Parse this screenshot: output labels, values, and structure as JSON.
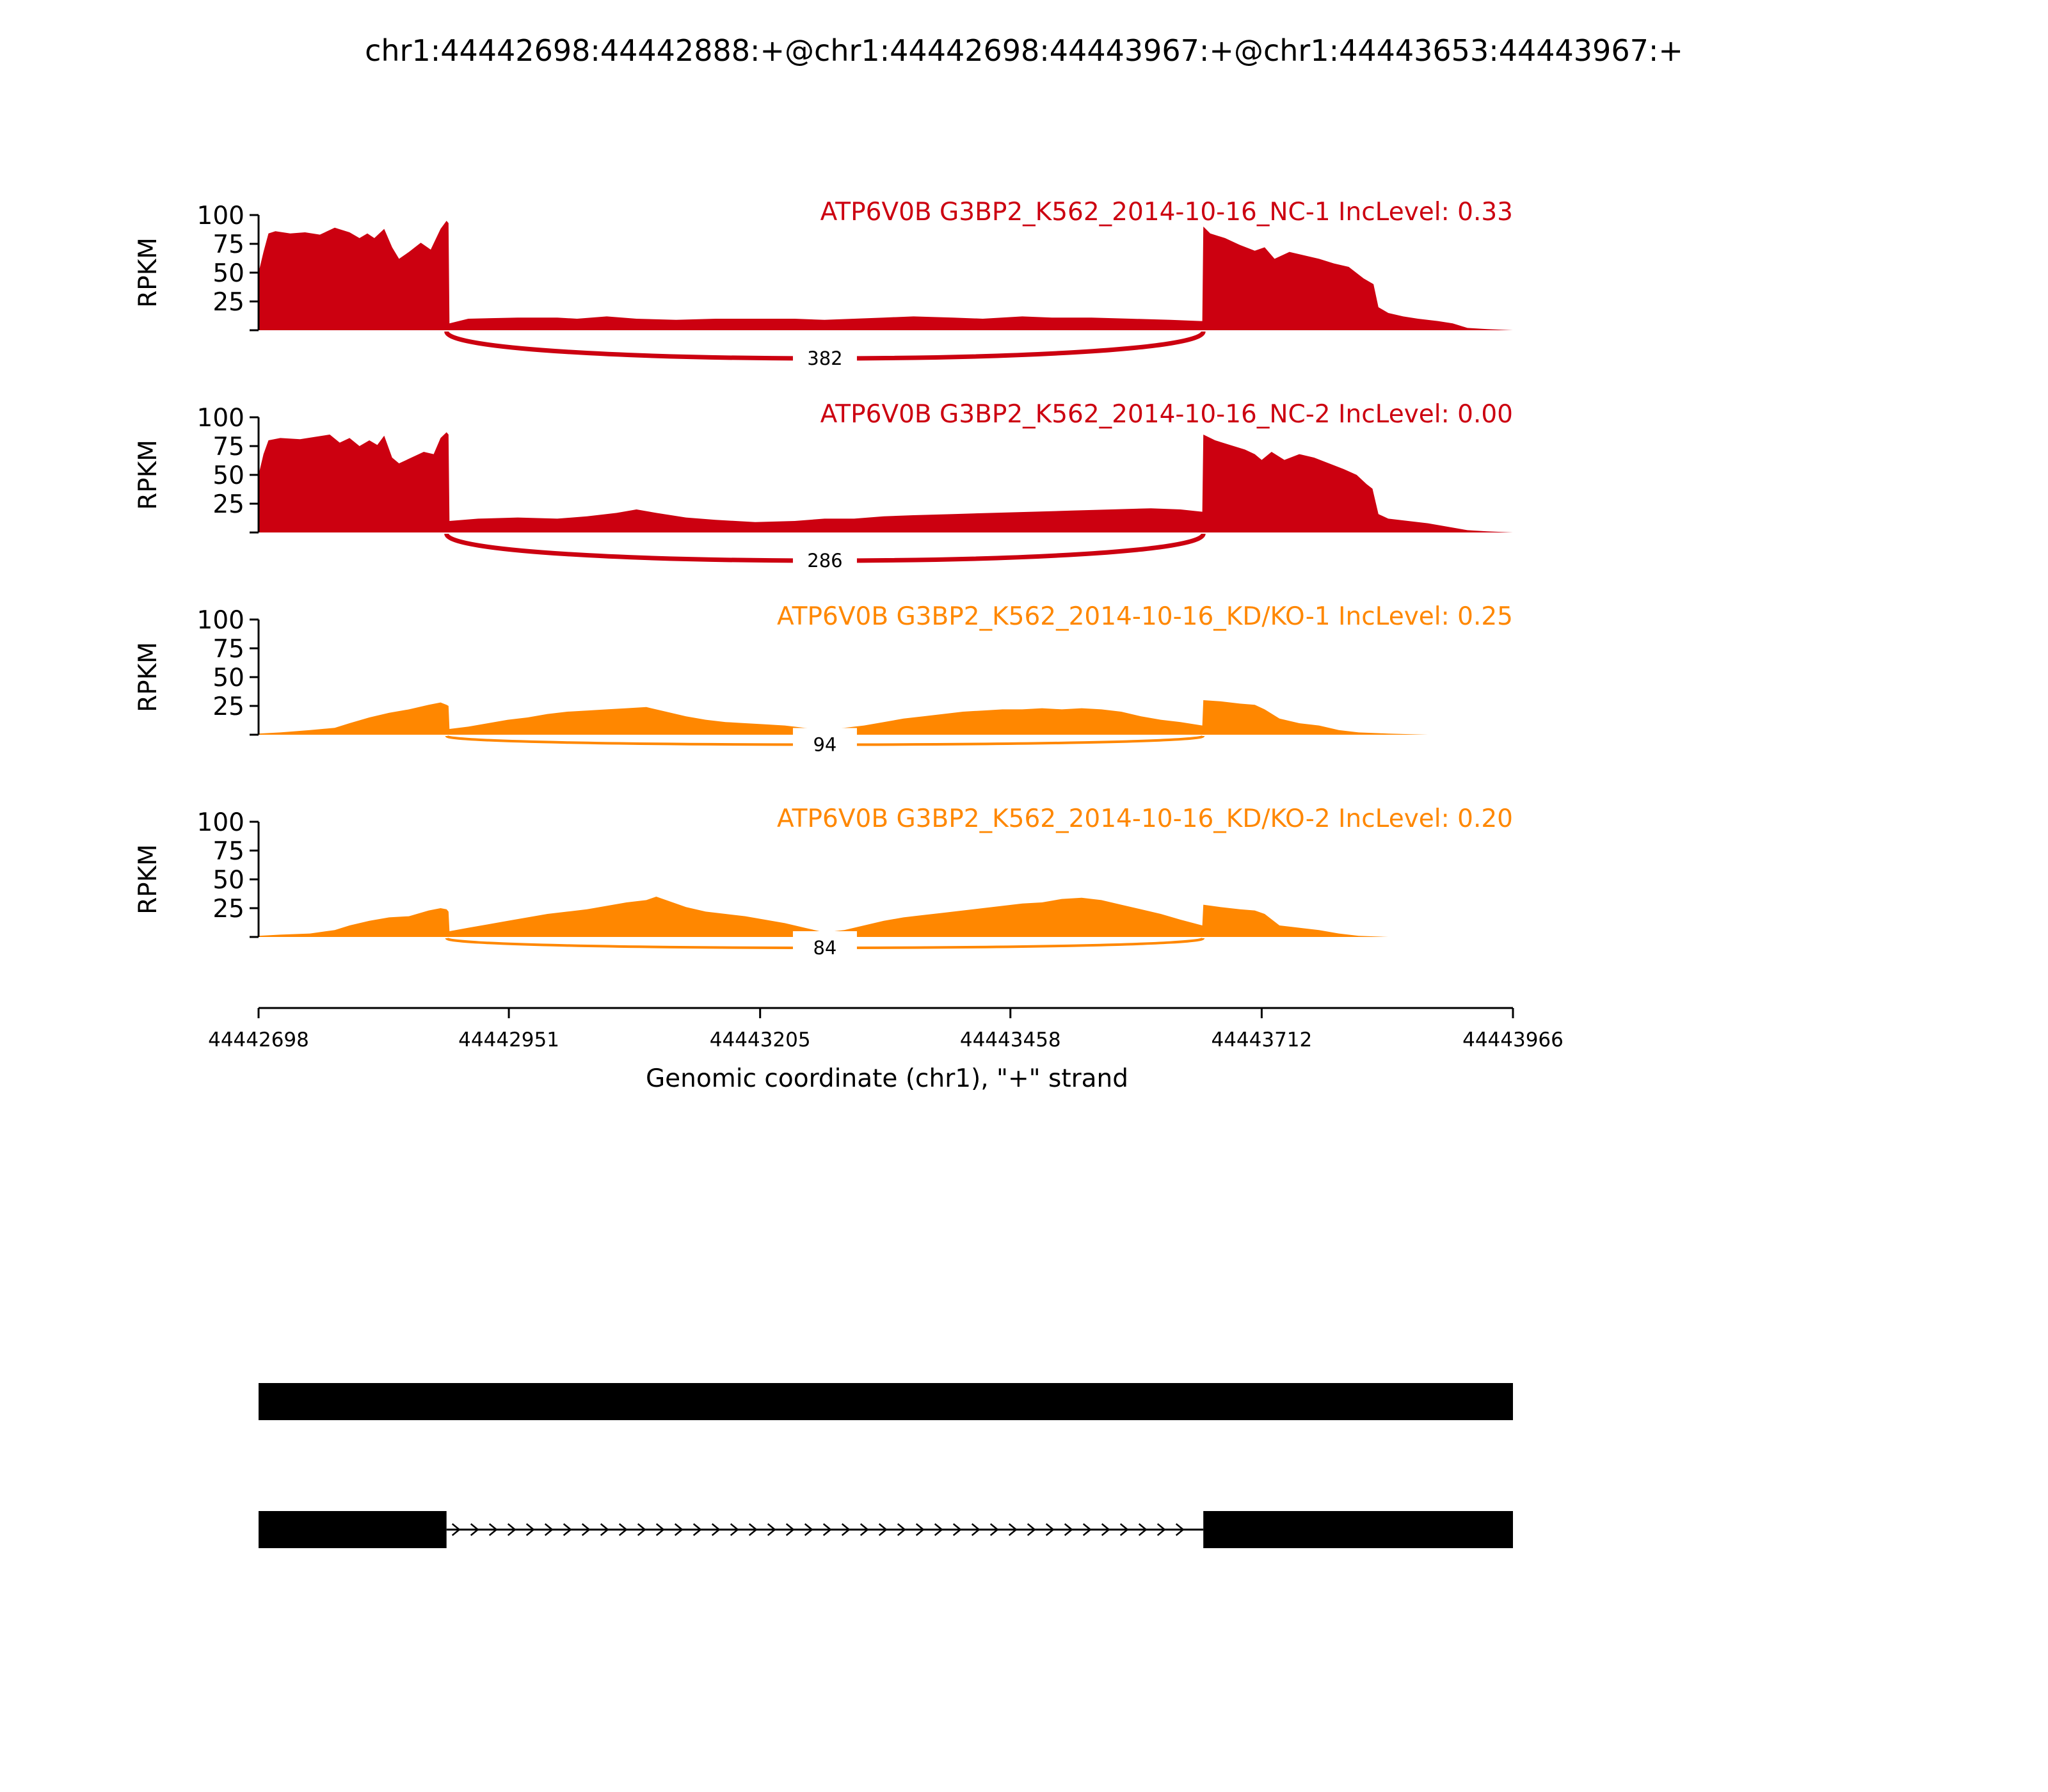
{
  "title": "chr1:44442698:44442888:+@chr1:44442698:44443967:+@chr1:44443653:44443967:+",
  "chart_data": {
    "type": "area",
    "ylabel": "RPKM",
    "ylim": [
      0,
      100
    ],
    "yticks": [
      25,
      50,
      75,
      100
    ],
    "xlim": [
      44442698,
      44443966
    ],
    "xticks": [
      44442698,
      44442951,
      44443205,
      44443458,
      44443712,
      44443966
    ],
    "xlabel": "Genomic coordinate (chr1), \"+\" strand",
    "colors": {
      "nc": "#cc0010",
      "kd": "#ff8700"
    },
    "tracks": [
      {
        "label": "ATP6V0B G3BP2_K562_2014-10-16_NC-1 IncLevel: 0.33",
        "color_key": "nc",
        "junction": {
          "start": 44442888,
          "end": 44443653,
          "count": "382",
          "depth": 28
        },
        "coverage": [
          [
            44442698,
            50
          ],
          [
            44442703,
            68
          ],
          [
            44442708,
            84
          ],
          [
            44442715,
            86
          ],
          [
            44442730,
            84
          ],
          [
            44442745,
            85
          ],
          [
            44442760,
            83
          ],
          [
            44442775,
            89
          ],
          [
            44442790,
            85
          ],
          [
            44442800,
            80
          ],
          [
            44442808,
            84
          ],
          [
            44442815,
            80
          ],
          [
            44442825,
            88
          ],
          [
            44442833,
            72
          ],
          [
            44442840,
            62
          ],
          [
            44442850,
            68
          ],
          [
            44442862,
            76
          ],
          [
            44442872,
            70
          ],
          [
            44442882,
            88
          ],
          [
            44442888,
            95
          ],
          [
            44442890,
            93
          ],
          [
            44442891,
            6
          ],
          [
            44442910,
            10
          ],
          [
            44442960,
            11
          ],
          [
            44443000,
            11
          ],
          [
            44443020,
            10
          ],
          [
            44443050,
            12
          ],
          [
            44443080,
            10
          ],
          [
            44443120,
            9
          ],
          [
            44443160,
            10
          ],
          [
            44443200,
            10
          ],
          [
            44443240,
            10
          ],
          [
            44443270,
            9
          ],
          [
            44443300,
            10
          ],
          [
            44443330,
            11
          ],
          [
            44443360,
            12
          ],
          [
            44443400,
            11
          ],
          [
            44443430,
            10
          ],
          [
            44443470,
            12
          ],
          [
            44443500,
            11
          ],
          [
            44443540,
            11
          ],
          [
            44443580,
            10
          ],
          [
            44443620,
            9
          ],
          [
            44443650,
            8
          ],
          [
            44443652,
            8
          ],
          [
            44443653,
            90
          ],
          [
            44443660,
            84
          ],
          [
            44443675,
            80
          ],
          [
            44443690,
            74
          ],
          [
            44443705,
            69
          ],
          [
            44443715,
            72
          ],
          [
            44443725,
            62
          ],
          [
            44443740,
            68
          ],
          [
            44443755,
            65
          ],
          [
            44443770,
            62
          ],
          [
            44443785,
            58
          ],
          [
            44443800,
            55
          ],
          [
            44443815,
            45
          ],
          [
            44443825,
            40
          ],
          [
            44443830,
            20
          ],
          [
            44443840,
            15
          ],
          [
            44443855,
            12
          ],
          [
            44443870,
            10
          ],
          [
            44443890,
            8
          ],
          [
            44443905,
            6
          ],
          [
            44443920,
            2
          ],
          [
            44443940,
            1
          ],
          [
            44443966,
            0
          ]
        ]
      },
      {
        "label": "ATP6V0B G3BP2_K562_2014-10-16_NC-2 IncLevel: 0.00",
        "color_key": "nc",
        "junction": {
          "start": 44442888,
          "end": 44443653,
          "count": "286",
          "depth": 28
        },
        "coverage": [
          [
            44442698,
            50
          ],
          [
            44442703,
            68
          ],
          [
            44442708,
            80
          ],
          [
            44442720,
            82
          ],
          [
            44442740,
            81
          ],
          [
            44442755,
            83
          ],
          [
            44442770,
            85
          ],
          [
            44442780,
            78
          ],
          [
            44442790,
            82
          ],
          [
            44442800,
            75
          ],
          [
            44442810,
            80
          ],
          [
            44442818,
            76
          ],
          [
            44442825,
            84
          ],
          [
            44442833,
            65
          ],
          [
            44442840,
            60
          ],
          [
            44442850,
            64
          ],
          [
            44442865,
            70
          ],
          [
            44442875,
            68
          ],
          [
            44442882,
            82
          ],
          [
            44442888,
            87
          ],
          [
            44442890,
            85
          ],
          [
            44442891,
            10
          ],
          [
            44442920,
            12
          ],
          [
            44442960,
            13
          ],
          [
            44443000,
            12
          ],
          [
            44443030,
            14
          ],
          [
            44443060,
            17
          ],
          [
            44443080,
            20
          ],
          [
            44443100,
            17
          ],
          [
            44443130,
            13
          ],
          [
            44443160,
            11
          ],
          [
            44443200,
            9
          ],
          [
            44443240,
            10
          ],
          [
            44443270,
            12
          ],
          [
            44443300,
            12
          ],
          [
            44443330,
            14
          ],
          [
            44443360,
            15
          ],
          [
            44443400,
            16
          ],
          [
            44443440,
            17
          ],
          [
            44443480,
            18
          ],
          [
            44443520,
            19
          ],
          [
            44443560,
            20
          ],
          [
            44443600,
            21
          ],
          [
            44443630,
            20
          ],
          [
            44443652,
            18
          ],
          [
            44443653,
            85
          ],
          [
            44443665,
            80
          ],
          [
            44443680,
            76
          ],
          [
            44443695,
            72
          ],
          [
            44443705,
            68
          ],
          [
            44443712,
            63
          ],
          [
            44443722,
            70
          ],
          [
            44443735,
            63
          ],
          [
            44443750,
            68
          ],
          [
            44443765,
            65
          ],
          [
            44443780,
            60
          ],
          [
            44443795,
            55
          ],
          [
            44443808,
            50
          ],
          [
            44443818,
            42
          ],
          [
            44443824,
            38
          ],
          [
            44443830,
            16
          ],
          [
            44443840,
            12
          ],
          [
            44443860,
            10
          ],
          [
            44443880,
            8
          ],
          [
            44443900,
            5
          ],
          [
            44443920,
            2
          ],
          [
            44443940,
            1
          ],
          [
            44443966,
            0
          ]
        ]
      },
      {
        "label": "ATP6V0B G3BP2_K562_2014-10-16_KD/KO-1 IncLevel: 0.25",
        "color_key": "kd",
        "junction": {
          "start": 44442888,
          "end": 44443653,
          "count": "94",
          "depth": 9
        },
        "coverage": [
          [
            44442698,
            1
          ],
          [
            44442720,
            2
          ],
          [
            44442750,
            4
          ],
          [
            44442775,
            6
          ],
          [
            44442790,
            10
          ],
          [
            44442810,
            15
          ],
          [
            44442830,
            19
          ],
          [
            44442850,
            22
          ],
          [
            44442870,
            26
          ],
          [
            44442882,
            28
          ],
          [
            44442888,
            26
          ],
          [
            44442890,
            25
          ],
          [
            44442891,
            5
          ],
          [
            44442910,
            7
          ],
          [
            44442930,
            10
          ],
          [
            44442950,
            13
          ],
          [
            44442970,
            15
          ],
          [
            44442990,
            18
          ],
          [
            44443010,
            20
          ],
          [
            44443030,
            21
          ],
          [
            44443050,
            22
          ],
          [
            44443070,
            23
          ],
          [
            44443090,
            24
          ],
          [
            44443110,
            20
          ],
          [
            44443130,
            16
          ],
          [
            44443150,
            13
          ],
          [
            44443170,
            11
          ],
          [
            44443190,
            10
          ],
          [
            44443210,
            9
          ],
          [
            44443230,
            8
          ],
          [
            44443250,
            6
          ],
          [
            44443270,
            5
          ],
          [
            44443290,
            6
          ],
          [
            44443310,
            8
          ],
          [
            44443330,
            11
          ],
          [
            44443350,
            14
          ],
          [
            44443370,
            16
          ],
          [
            44443390,
            18
          ],
          [
            44443410,
            20
          ],
          [
            44443430,
            21
          ],
          [
            44443450,
            22
          ],
          [
            44443470,
            22
          ],
          [
            44443490,
            23
          ],
          [
            44443510,
            22
          ],
          [
            44443530,
            23
          ],
          [
            44443550,
            22
          ],
          [
            44443570,
            20
          ],
          [
            44443590,
            16
          ],
          [
            44443610,
            13
          ],
          [
            44443630,
            11
          ],
          [
            44443652,
            8
          ],
          [
            44443653,
            30
          ],
          [
            44443670,
            29
          ],
          [
            44443690,
            27
          ],
          [
            44443705,
            26
          ],
          [
            44443715,
            22
          ],
          [
            44443730,
            14
          ],
          [
            44443750,
            10
          ],
          [
            44443770,
            8
          ],
          [
            44443790,
            4
          ],
          [
            44443810,
            2
          ],
          [
            44443840,
            1
          ],
          [
            44443880,
            0
          ],
          [
            44443966,
            0
          ]
        ]
      },
      {
        "label": "ATP6V0B G3BP2_K562_2014-10-16_KD/KO-2 IncLevel: 0.20",
        "color_key": "kd",
        "junction": {
          "start": 44442888,
          "end": 44443653,
          "count": "84",
          "depth": 10
        },
        "coverage": [
          [
            44442698,
            1
          ],
          [
            44442720,
            2
          ],
          [
            44442750,
            3
          ],
          [
            44442775,
            6
          ],
          [
            44442790,
            10
          ],
          [
            44442810,
            14
          ],
          [
            44442830,
            17
          ],
          [
            44442850,
            18
          ],
          [
            44442870,
            23
          ],
          [
            44442882,
            25
          ],
          [
            44442888,
            24
          ],
          [
            44442890,
            22
          ],
          [
            44442891,
            5
          ],
          [
            44442910,
            8
          ],
          [
            44442930,
            11
          ],
          [
            44442950,
            14
          ],
          [
            44442970,
            17
          ],
          [
            44442990,
            20
          ],
          [
            44443010,
            22
          ],
          [
            44443030,
            24
          ],
          [
            44443050,
            27
          ],
          [
            44443070,
            30
          ],
          [
            44443090,
            32
          ],
          [
            44443100,
            35
          ],
          [
            44443110,
            32
          ],
          [
            44443130,
            26
          ],
          [
            44443150,
            22
          ],
          [
            44443170,
            20
          ],
          [
            44443190,
            18
          ],
          [
            44443210,
            15
          ],
          [
            44443230,
            12
          ],
          [
            44443250,
            8
          ],
          [
            44443270,
            4
          ],
          [
            44443290,
            6
          ],
          [
            44443310,
            10
          ],
          [
            44443330,
            14
          ],
          [
            44443350,
            17
          ],
          [
            44443370,
            19
          ],
          [
            44443390,
            21
          ],
          [
            44443410,
            23
          ],
          [
            44443430,
            25
          ],
          [
            44443450,
            27
          ],
          [
            44443470,
            29
          ],
          [
            44443490,
            30
          ],
          [
            44443510,
            33
          ],
          [
            44443530,
            34
          ],
          [
            44443550,
            32
          ],
          [
            44443570,
            28
          ],
          [
            44443590,
            24
          ],
          [
            44443610,
            20
          ],
          [
            44443630,
            15
          ],
          [
            44443652,
            10
          ],
          [
            44443653,
            28
          ],
          [
            44443670,
            26
          ],
          [
            44443690,
            24
          ],
          [
            44443705,
            23
          ],
          [
            44443715,
            20
          ],
          [
            44443730,
            10
          ],
          [
            44443750,
            8
          ],
          [
            44443770,
            6
          ],
          [
            44443790,
            3
          ],
          [
            44443810,
            1
          ],
          [
            44443840,
            0
          ],
          [
            44443966,
            0
          ]
        ]
      }
    ],
    "isoforms": [
      {
        "exons": [
          [
            44442698,
            44443966
          ]
        ]
      },
      {
        "exons": [
          [
            44442698,
            44442888
          ],
          [
            44443653,
            44443966
          ]
        ],
        "strand": "+"
      }
    ]
  }
}
